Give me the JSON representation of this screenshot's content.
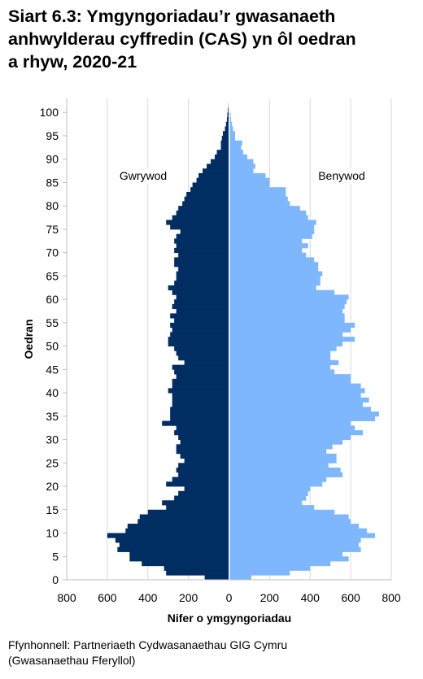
{
  "title_lines": [
    "Siart 6.3: Ymgyngoriadau’r gwasanaeth",
    "anhwylderau cyffredin (CAS) yn ôl oedran",
    "a rhyw, 2020-21"
  ],
  "source_lines": [
    "Ffynhonnell: Partneriaeth Cydwasanaethau GIG Cymru",
    "(Gwasanaethau Fferyllol)"
  ],
  "colors": {
    "male": "#002d62",
    "female": "#7fb7ff",
    "grid": "#d9d9d9",
    "axis": "#bfbfbf"
  },
  "chart_data": {
    "type": "bar",
    "orientation": "horizontal-population-pyramid",
    "xlabel": "Nifer o ymgyngoriadau",
    "ylabel": "Oedran",
    "xlim": [
      -800,
      800
    ],
    "ylim": [
      0,
      103
    ],
    "x_ticks": [
      -800,
      -600,
      -400,
      -200,
      0,
      200,
      400,
      600,
      800
    ],
    "x_tick_labels": [
      "800",
      "600",
      "400",
      "200",
      "0",
      "200",
      "400",
      "600",
      "800"
    ],
    "y_ticks": [
      0,
      5,
      10,
      15,
      20,
      25,
      30,
      35,
      40,
      45,
      50,
      55,
      60,
      65,
      70,
      75,
      80,
      85,
      90,
      95,
      100
    ],
    "y_tick_labels": [
      "0",
      "5",
      "10",
      "15",
      "20",
      "25",
      "30",
      "35",
      "40",
      "45",
      "50",
      "55",
      "60",
      "65",
      "70",
      "75",
      "80",
      "85",
      "90",
      "95",
      "100"
    ],
    "grid": "vertical",
    "legend": "inline labels",
    "categories": [
      0,
      1,
      2,
      3,
      4,
      5,
      6,
      7,
      8,
      9,
      10,
      11,
      12,
      13,
      14,
      15,
      16,
      17,
      18,
      19,
      20,
      21,
      22,
      23,
      24,
      25,
      26,
      27,
      28,
      29,
      30,
      31,
      32,
      33,
      34,
      35,
      36,
      37,
      38,
      39,
      40,
      41,
      42,
      43,
      44,
      45,
      46,
      47,
      48,
      49,
      50,
      51,
      52,
      53,
      54,
      55,
      56,
      57,
      58,
      59,
      60,
      61,
      62,
      63,
      64,
      65,
      66,
      67,
      68,
      69,
      70,
      71,
      72,
      73,
      74,
      75,
      76,
      77,
      78,
      79,
      80,
      81,
      82,
      83,
      84,
      85,
      86,
      87,
      88,
      89,
      90,
      91,
      92,
      93,
      94,
      95,
      96,
      97,
      98,
      99,
      100,
      101
    ],
    "series": [
      {
        "name": "Gwrywod",
        "values": [
          120,
          310,
          320,
          430,
          490,
          490,
          550,
          540,
          560,
          600,
          510,
          500,
          450,
          440,
          400,
          310,
          330,
          270,
          250,
          220,
          310,
          280,
          250,
          260,
          250,
          220,
          240,
          260,
          260,
          240,
          250,
          270,
          260,
          330,
          290,
          290,
          290,
          280,
          280,
          280,
          300,
          280,
          280,
          260,
          270,
          280,
          220,
          250,
          260,
          270,
          300,
          300,
          290,
          280,
          290,
          270,
          290,
          260,
          280,
          270,
          260,
          280,
          300,
          270,
          260,
          260,
          250,
          270,
          270,
          250,
          270,
          260,
          270,
          260,
          240,
          290,
          310,
          280,
          260,
          250,
          230,
          220,
          210,
          190,
          180,
          160,
          150,
          130,
          110,
          90,
          70,
          60,
          40,
          40,
          35,
          30,
          20,
          15,
          10,
          8,
          5,
          3
        ]
      },
      {
        "name": "Benywod",
        "values": [
          110,
          300,
          400,
          500,
          590,
          560,
          650,
          640,
          650,
          720,
          680,
          640,
          600,
          590,
          520,
          420,
          360,
          380,
          390,
          400,
          460,
          480,
          560,
          550,
          490,
          530,
          530,
          480,
          510,
          560,
          600,
          660,
          620,
          600,
          720,
          740,
          700,
          660,
          690,
          650,
          670,
          650,
          600,
          600,
          520,
          500,
          540,
          500,
          500,
          530,
          560,
          620,
          560,
          600,
          620,
          570,
          570,
          560,
          570,
          580,
          590,
          520,
          430,
          450,
          450,
          460,
          440,
          440,
          420,
          380,
          360,
          390,
          360,
          410,
          420,
          420,
          430,
          390,
          380,
          350,
          300,
          290,
          280,
          280,
          200,
          200,
          180,
          120,
          130,
          120,
          90,
          70,
          60,
          65,
          30,
          30,
          20,
          15,
          10,
          8,
          5,
          3
        ]
      }
    ],
    "inline_labels": {
      "male": "Gwrywod",
      "female": "Benywod"
    }
  }
}
